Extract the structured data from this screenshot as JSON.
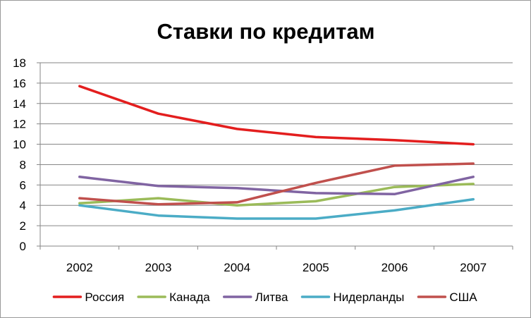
{
  "chart_data": {
    "type": "line",
    "title": "Ставки по кредитам",
    "xlabel": "",
    "ylabel": "",
    "categories": [
      "2002",
      "2003",
      "2004",
      "2005",
      "2006",
      "2007"
    ],
    "ylim": [
      0,
      18
    ],
    "yticks": [
      0,
      2,
      4,
      6,
      8,
      10,
      12,
      14,
      16,
      18
    ],
    "ytick_labels": [
      "0",
      "2",
      "4",
      "6",
      "8",
      "10",
      "12",
      "14",
      "16",
      "18"
    ],
    "grid": "horizontal",
    "legend_position": "bottom",
    "series": [
      {
        "name": "Россия",
        "color": "#e31e1e",
        "values": [
          15.7,
          13.0,
          11.5,
          10.7,
          10.4,
          10.0
        ]
      },
      {
        "name": "Канада",
        "color": "#9bbb59",
        "values": [
          4.2,
          4.7,
          4.0,
          4.4,
          5.8,
          6.1
        ]
      },
      {
        "name": "Литва",
        "color": "#8064a2",
        "values": [
          6.8,
          5.9,
          5.7,
          5.2,
          5.1,
          6.8
        ]
      },
      {
        "name": "Нидерланды",
        "color": "#4bacc6",
        "values": [
          4.0,
          3.0,
          2.7,
          2.7,
          3.5,
          4.6
        ]
      },
      {
        "name": "США",
        "color": "#c0504d",
        "values": [
          4.7,
          4.1,
          4.3,
          6.2,
          7.9,
          8.1
        ]
      }
    ]
  }
}
